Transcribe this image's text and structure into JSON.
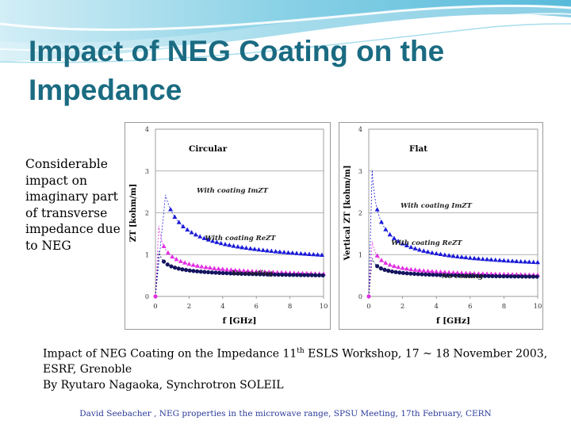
{
  "slide": {
    "title_line1": "Impact of NEG Coating on the",
    "title_line2": "Impedance",
    "side_text": "Considerable impact on imaginary part of transverse impedance due to NEG",
    "caption_line1_pre": "Impact of NEG Coating on the Impedance 11",
    "caption_line1_sup": "th",
    "caption_line1_post": " ESLS Workshop, 17 ~ 18 November 2003,",
    "caption_line2": "ESRF, Grenoble",
    "caption_line3": "By Ryutaro Nagaoka, Synchrotron SOLEIL",
    "footer": "David Seebacher , NEG properties in the microwave range, SPSU Meeting, 17th February, CERN",
    "colors": {
      "title": "#1a6b82",
      "footer": "#2a3a9a",
      "wave": "#6fc6de"
    }
  },
  "chart_data": [
    {
      "type": "scatter",
      "title": "Circular",
      "xlabel": "f [GHz]",
      "ylabel": "ZT [kohm/m]",
      "xlim": [
        0,
        10
      ],
      "ylim": [
        0,
        4
      ],
      "xticks": [
        0,
        2,
        4,
        6,
        8,
        10
      ],
      "yticks": [
        0,
        1,
        2,
        3,
        4
      ],
      "grid": "horizontal",
      "annotations": [
        "With coating ImZT",
        "With coating ReZT",
        "No coating"
      ],
      "series": [
        {
          "name": "With coating ImZT",
          "color": "#1a1ad8",
          "marker": "triangle",
          "A": 1.48,
          "B": 0.52,
          "x0": 0.6
        },
        {
          "name": "With coating ReZT",
          "color": "#e22ee2",
          "marker": "triangle",
          "A": 0.6,
          "B": 0.35,
          "x0": 0.2
        },
        {
          "name": "No coating",
          "color": "#14145e",
          "marker": "circle",
          "A": 0.3,
          "B": 0.41,
          "x0": 0.2
        }
      ]
    },
    {
      "type": "scatter",
      "title": "Flat",
      "xlabel": "f [GHz]",
      "ylabel": "Vertical ZT [kohm/m]",
      "xlim": [
        0,
        10
      ],
      "ylim": [
        0,
        4
      ],
      "xticks": [
        0,
        2,
        4,
        6,
        8,
        10
      ],
      "yticks": [
        0,
        1,
        2,
        3,
        4
      ],
      "grid": "horizontal",
      "annotations": [
        "With coating ImZT",
        "With coating ReZT",
        "No coating"
      ],
      "series": [
        {
          "name": "With coating ImZT",
          "color": "#1a1ad8",
          "marker": "triangle",
          "A": 1.15,
          "B": 0.45,
          "x0": 0.2
        },
        {
          "name": "With coating ReZT",
          "color": "#e22ee2",
          "marker": "triangle",
          "A": 0.42,
          "B": 0.38,
          "x0": 0.2
        },
        {
          "name": "No coating",
          "color": "#14145e",
          "marker": "circle",
          "A": 0.23,
          "B": 0.4,
          "x0": 0.2
        }
      ]
    }
  ]
}
